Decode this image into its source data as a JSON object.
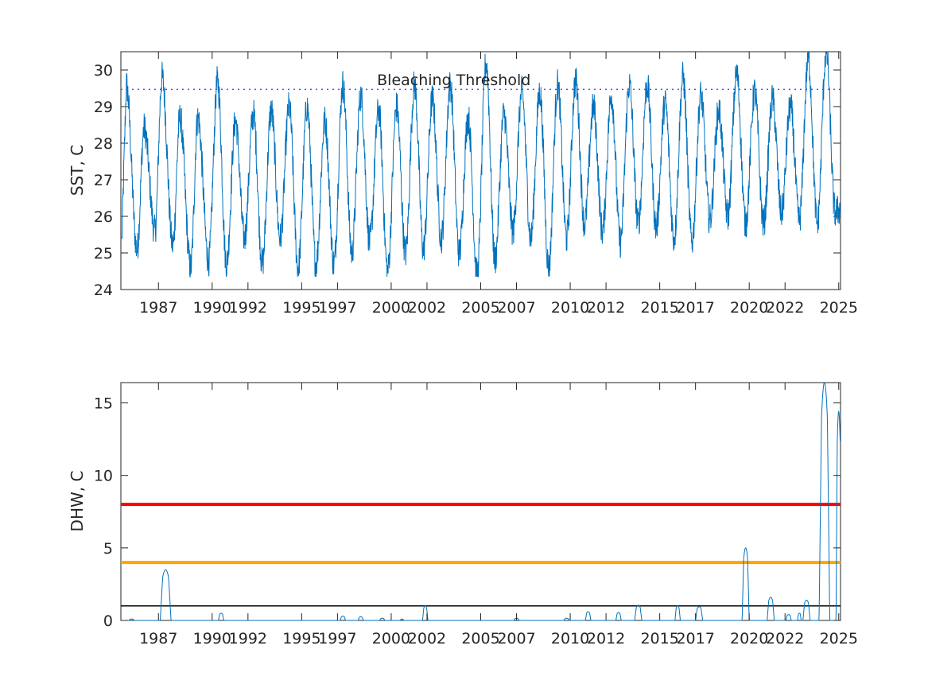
{
  "chart_data": [
    {
      "type": "line",
      "ylabel": "SST, C",
      "xlabel": "",
      "xlim": [
        1984.9,
        2025.1
      ],
      "ylim": [
        24,
        30.5
      ],
      "x_ticks": [
        "1987",
        "1990",
        "1992",
        "1995",
        "1997",
        "2000",
        "2002",
        "2005",
        "2007",
        "2010",
        "2012",
        "2015",
        "2017",
        "2020",
        "2022",
        "2025"
      ],
      "y_ticks": [
        24,
        25,
        26,
        27,
        28,
        29,
        30
      ],
      "grid": false,
      "annotation": {
        "text": "Bleaching Threshold",
        "x": 2003.5,
        "y": 29.7
      },
      "threshold": {
        "y": 29.47,
        "style": "dotted",
        "color": "#4a4aff"
      },
      "series_color": "#0072bd",
      "seasonal_peaks": [
        [
          1985.2,
          29.6
        ],
        [
          1986.2,
          28.4
        ],
        [
          1987.2,
          29.8
        ],
        [
          1988.2,
          28.7
        ],
        [
          1989.2,
          28.7
        ],
        [
          1990.3,
          29.7
        ],
        [
          1991.3,
          28.6
        ],
        [
          1992.3,
          28.8
        ],
        [
          1993.3,
          28.9
        ],
        [
          1994.3,
          29.0
        ],
        [
          1995.3,
          29.0
        ],
        [
          1996.3,
          28.6
        ],
        [
          1997.3,
          29.6
        ],
        [
          1998.3,
          29.3
        ],
        [
          1999.3,
          28.9
        ],
        [
          2000.3,
          29.0
        ],
        [
          2001.3,
          29.6
        ],
        [
          2002.3,
          29.2
        ],
        [
          2003.3,
          29.6
        ],
        [
          2004.3,
          28.7
        ],
        [
          2005.3,
          30.2
        ],
        [
          2006.3,
          28.8
        ],
        [
          2007.3,
          29.4
        ],
        [
          2008.3,
          29.4
        ],
        [
          2009.3,
          29.6
        ],
        [
          2010.3,
          29.7
        ],
        [
          2011.3,
          29.0
        ],
        [
          2012.3,
          29.3
        ],
        [
          2013.3,
          29.6
        ],
        [
          2014.3,
          29.6
        ],
        [
          2015.3,
          29.1
        ],
        [
          2016.3,
          29.8
        ],
        [
          2017.3,
          29.3
        ],
        [
          2018.3,
          28.9
        ],
        [
          2019.3,
          29.9
        ],
        [
          2020.3,
          29.4
        ],
        [
          2021.3,
          29.2
        ],
        [
          2022.3,
          29.0
        ],
        [
          2023.3,
          30.3
        ],
        [
          2024.3,
          30.5
        ]
      ],
      "seasonal_troughs": [
        [
          1985.8,
          25.1
        ],
        [
          1986.8,
          25.6
        ],
        [
          1987.8,
          25.2
        ],
        [
          1988.8,
          24.6
        ],
        [
          1989.8,
          24.8
        ],
        [
          1990.8,
          24.7
        ],
        [
          1991.8,
          25.4
        ],
        [
          1992.8,
          24.7
        ],
        [
          1993.8,
          25.4
        ],
        [
          1994.8,
          24.6
        ],
        [
          1995.8,
          24.7
        ],
        [
          1996.8,
          24.7
        ],
        [
          1997.8,
          25.0
        ],
        [
          1998.8,
          25.3
        ],
        [
          1999.8,
          24.5
        ],
        [
          2000.8,
          25.0
        ],
        [
          2001.8,
          25.1
        ],
        [
          2002.8,
          25.4
        ],
        [
          2003.8,
          25.0
        ],
        [
          2004.8,
          24.4
        ],
        [
          2005.8,
          24.8
        ],
        [
          2006.8,
          25.6
        ],
        [
          2007.8,
          25.4
        ],
        [
          2008.8,
          24.6
        ],
        [
          2009.8,
          25.4
        ],
        [
          2010.8,
          25.8
        ],
        [
          2011.8,
          25.6
        ],
        [
          2012.8,
          25.3
        ],
        [
          2013.8,
          25.8
        ],
        [
          2014.8,
          25.7
        ],
        [
          2015.8,
          25.4
        ],
        [
          2016.8,
          25.3
        ],
        [
          2017.8,
          25.9
        ],
        [
          2018.8,
          26.0
        ],
        [
          2019.8,
          25.8
        ],
        [
          2020.8,
          25.8
        ],
        [
          2021.8,
          26.1
        ],
        [
          2022.8,
          25.9
        ],
        [
          2023.8,
          25.8
        ],
        [
          2024.8,
          26.1
        ]
      ]
    },
    {
      "type": "line",
      "ylabel": "DHW, C",
      "xlabel": "",
      "xlim": [
        1984.9,
        2025.1
      ],
      "ylim": [
        0,
        16.4
      ],
      "x_ticks": [
        "1987",
        "1990",
        "1992",
        "1995",
        "1997",
        "2000",
        "2002",
        "2005",
        "2007",
        "2010",
        "2012",
        "2015",
        "2017",
        "2020",
        "2022",
        "2025"
      ],
      "y_ticks": [
        0,
        5,
        10,
        15
      ],
      "grid": false,
      "series_color": "#0072bd",
      "reference_lines": [
        {
          "y": 8,
          "color": "#ff0000",
          "width": 4
        },
        {
          "y": 4,
          "color": "#ffa500",
          "width": 4
        },
        {
          "y": 1,
          "color": "#000000",
          "width": 1.5
        }
      ],
      "events": [
        [
          1985.5,
          0.1,
          0.3
        ],
        [
          1987.4,
          3.5,
          0.6
        ],
        [
          1990.5,
          0.5,
          0.3
        ],
        [
          1997.3,
          0.3,
          0.3
        ],
        [
          1998.3,
          0.25,
          0.3
        ],
        [
          1999.5,
          0.15,
          0.3
        ],
        [
          2000.6,
          0.1,
          0.2
        ],
        [
          2001.9,
          1.0,
          0.3
        ],
        [
          2007.0,
          0.15,
          0.3
        ],
        [
          2009.8,
          0.15,
          0.3
        ],
        [
          2011.0,
          0.6,
          0.3
        ],
        [
          2012.7,
          0.55,
          0.3
        ],
        [
          2013.8,
          1.05,
          0.4
        ],
        [
          2016.0,
          1.0,
          0.3
        ],
        [
          2017.2,
          0.95,
          0.4
        ],
        [
          2019.8,
          5.0,
          0.4
        ],
        [
          2021.2,
          1.6,
          0.4
        ],
        [
          2022.2,
          0.4,
          0.3
        ],
        [
          2022.8,
          0.5,
          0.2
        ],
        [
          2023.2,
          1.4,
          0.4
        ],
        [
          2024.2,
          16.4,
          0.6
        ],
        [
          2025.0,
          14.4,
          0.3
        ]
      ]
    }
  ]
}
